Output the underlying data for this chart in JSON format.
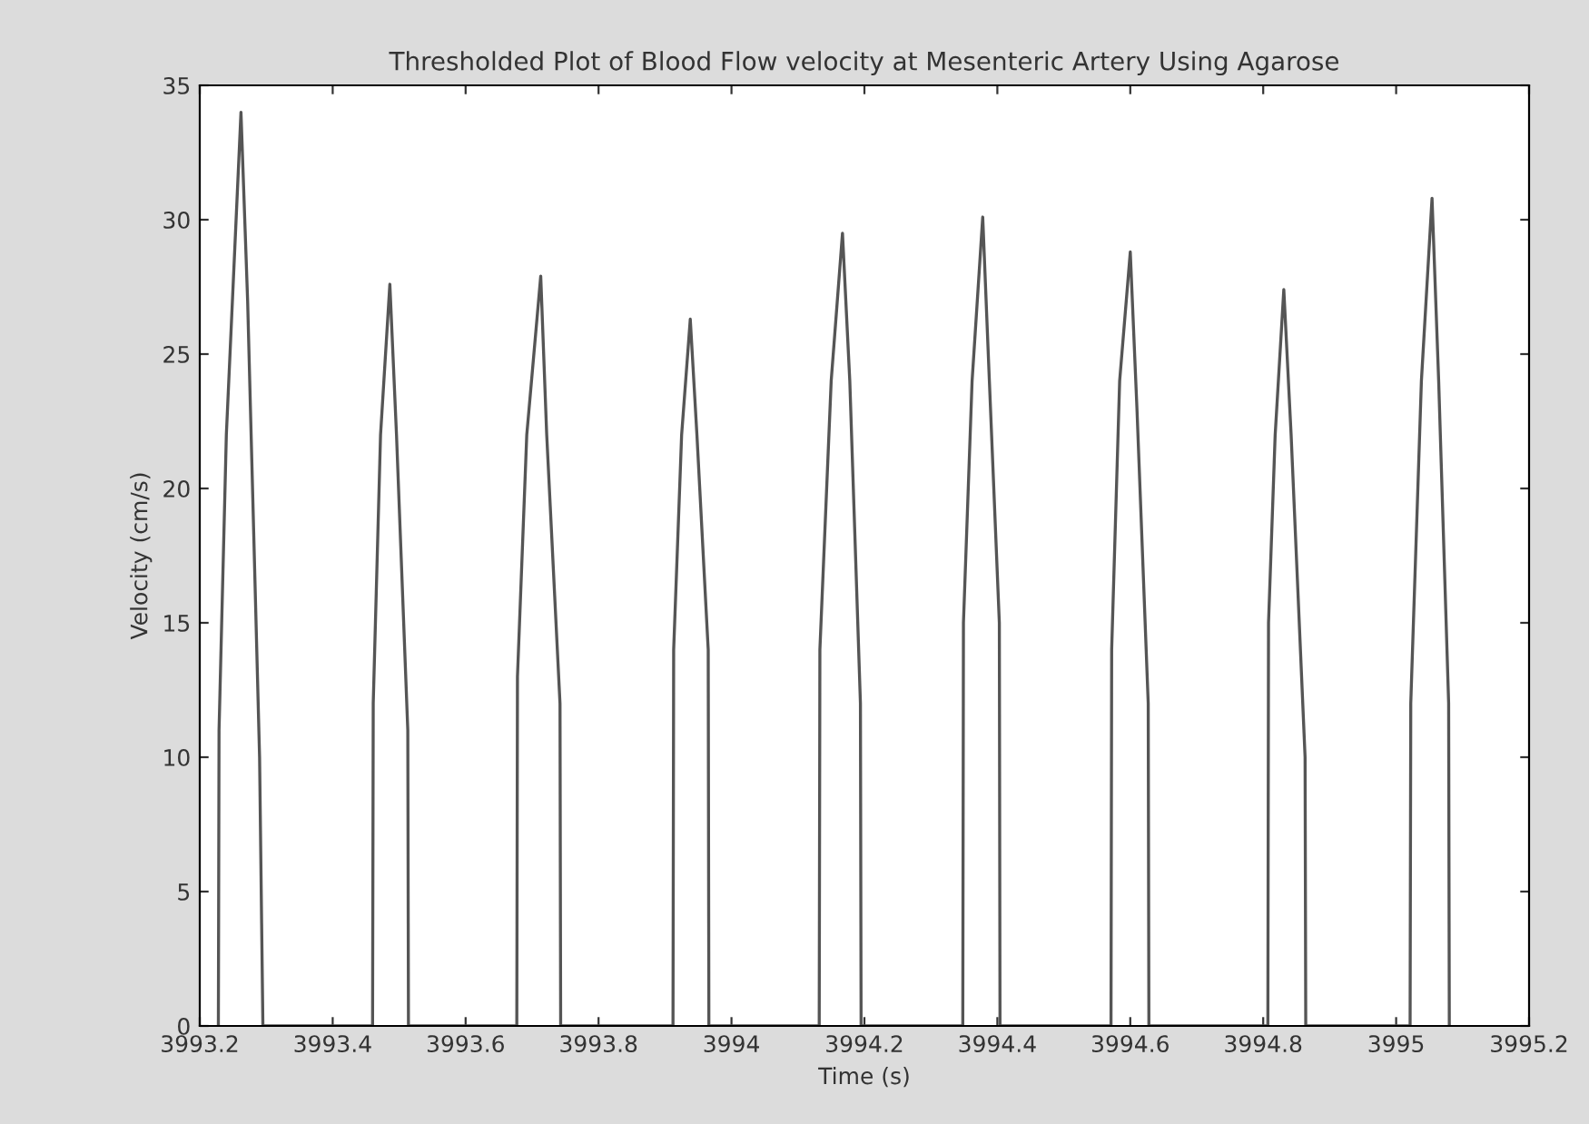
{
  "chart_data": {
    "type": "line",
    "title": "Thresholded Plot of Blood Flow velocity at Mesenteric Artery Using Agarose",
    "xlabel": "Time (s)",
    "ylabel": "Velocity (cm/s)",
    "xlim": [
      3993.2,
      3995.2
    ],
    "xticks": [
      3993.2,
      3993.4,
      3993.6,
      3993.8,
      3994,
      3994.2,
      3994.4,
      3994.6,
      3994.8,
      3995,
      3995.2
    ],
    "ylim": [
      0,
      35
    ],
    "yticks": [
      0,
      5,
      10,
      15,
      20,
      25,
      30,
      35
    ],
    "grid": false,
    "marker": "none",
    "line_style": "solid",
    "series": [
      {
        "color": "#555555",
        "x": [
          3993.228,
          3993.229,
          3993.24,
          3993.262,
          3993.272,
          3993.29,
          3993.295,
          3993.46,
          3993.461,
          3993.472,
          3993.486,
          3993.496,
          3993.513,
          3993.514,
          3993.677,
          3993.678,
          3993.692,
          3993.713,
          3993.722,
          3993.742,
          3993.743,
          3993.912,
          3993.913,
          3993.925,
          3993.938,
          3993.948,
          3993.965,
          3993.966,
          3994.132,
          3994.133,
          3994.15,
          3994.167,
          3994.178,
          3994.194,
          3994.195,
          3994.348,
          3994.349,
          3994.362,
          3994.378,
          3994.388,
          3994.403,
          3994.404,
          3994.571,
          3994.572,
          3994.584,
          3994.6,
          3994.61,
          3994.627,
          3994.628,
          3994.807,
          3994.808,
          3994.818,
          3994.831,
          3994.842,
          3994.863,
          3994.864,
          3995.021,
          3995.022,
          3995.038,
          3995.054,
          3995.064,
          3995.079,
          3995.08
        ],
        "values": [
          0,
          11,
          22,
          34,
          27,
          10,
          0,
          0,
          12,
          22,
          27.6,
          22,
          11,
          0,
          0,
          13,
          22,
          27.9,
          22,
          12,
          0,
          0,
          14,
          22,
          26.3,
          22,
          14,
          0,
          0,
          14,
          24,
          29.5,
          24,
          12,
          0,
          0,
          15,
          24,
          30.1,
          24,
          15,
          0,
          0,
          14,
          24,
          28.8,
          23,
          12,
          0,
          0,
          15,
          22,
          27.4,
          22,
          10,
          0,
          0,
          12,
          24,
          30.8,
          24,
          12,
          0
        ]
      }
    ]
  }
}
